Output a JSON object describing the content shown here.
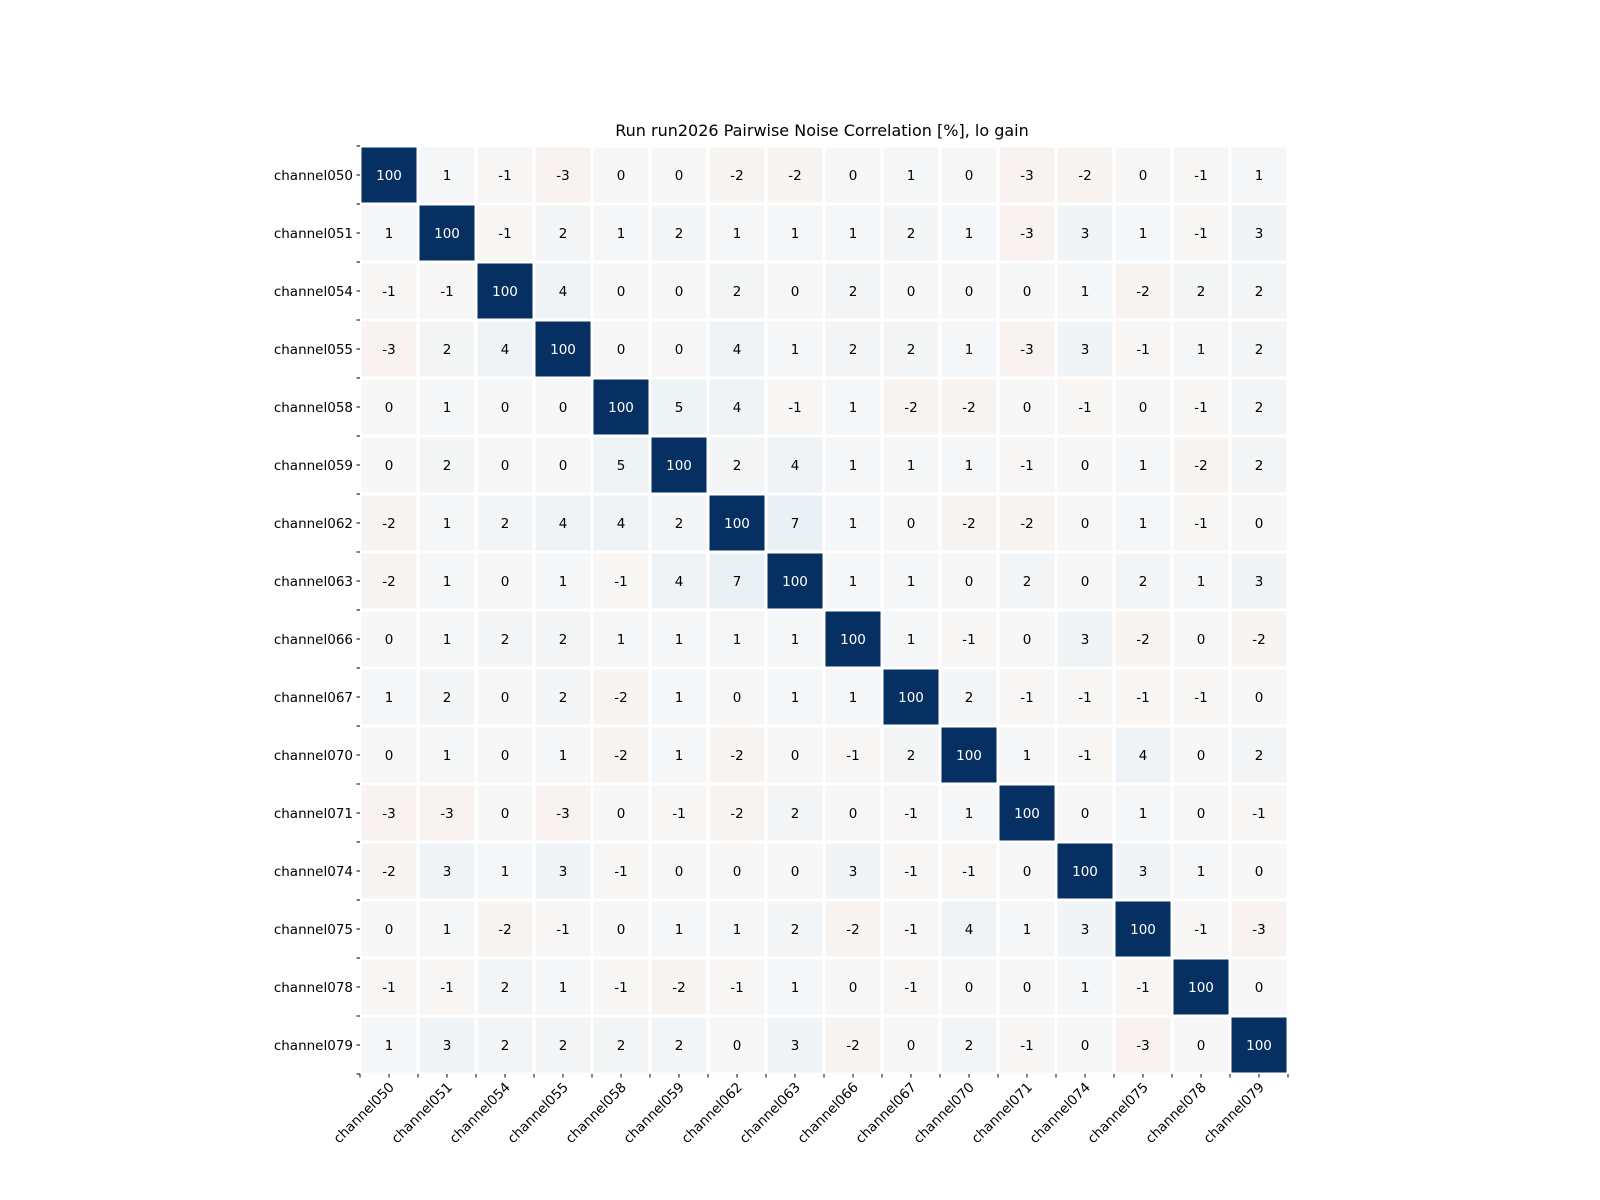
{
  "chart_data": {
    "type": "heatmap",
    "title": "Run run2026 Pairwise Noise Correlation [%], lo gain",
    "xlabel": "",
    "ylabel": "",
    "row_labels": [
      "channel050",
      "channel051",
      "channel054",
      "channel055",
      "channel058",
      "channel059",
      "channel062",
      "channel063",
      "channel066",
      "channel067",
      "channel070",
      "channel071",
      "channel074",
      "channel075",
      "channel078",
      "channel079"
    ],
    "col_labels": [
      "channel050",
      "channel051",
      "channel054",
      "channel055",
      "channel058",
      "channel059",
      "channel062",
      "channel063",
      "channel066",
      "channel067",
      "channel070",
      "channel071",
      "channel074",
      "channel075",
      "channel078",
      "channel079"
    ],
    "values": [
      [
        100,
        1,
        -1,
        -3,
        0,
        0,
        -2,
        -2,
        0,
        1,
        0,
        -3,
        -2,
        0,
        -1,
        1
      ],
      [
        1,
        100,
        -1,
        2,
        1,
        2,
        1,
        1,
        1,
        2,
        1,
        -3,
        3,
        1,
        -1,
        3
      ],
      [
        -1,
        -1,
        100,
        4,
        0,
        0,
        2,
        0,
        2,
        0,
        0,
        0,
        1,
        -2,
        2,
        2
      ],
      [
        -3,
        2,
        4,
        100,
        0,
        0,
        4,
        1,
        2,
        2,
        1,
        -3,
        3,
        -1,
        1,
        2
      ],
      [
        0,
        1,
        0,
        0,
        100,
        5,
        4,
        -1,
        1,
        -2,
        -2,
        0,
        -1,
        0,
        -1,
        2
      ],
      [
        0,
        2,
        0,
        0,
        5,
        100,
        2,
        4,
        1,
        1,
        1,
        -1,
        0,
        1,
        -2,
        2
      ],
      [
        -2,
        1,
        2,
        4,
        4,
        2,
        100,
        7,
        1,
        0,
        -2,
        -2,
        0,
        1,
        -1,
        0
      ],
      [
        -2,
        1,
        0,
        1,
        -1,
        4,
        7,
        100,
        1,
        1,
        0,
        2,
        0,
        2,
        1,
        3
      ],
      [
        0,
        1,
        2,
        2,
        1,
        1,
        1,
        1,
        100,
        1,
        -1,
        0,
        3,
        -2,
        0,
        -2
      ],
      [
        1,
        2,
        0,
        2,
        -2,
        1,
        0,
        1,
        1,
        100,
        2,
        -1,
        -1,
        -1,
        -1,
        0
      ],
      [
        0,
        1,
        0,
        1,
        -2,
        1,
        -2,
        0,
        -1,
        2,
        100,
        1,
        -1,
        4,
        0,
        2
      ],
      [
        -3,
        -3,
        0,
        -3,
        0,
        -1,
        -2,
        2,
        0,
        -1,
        1,
        100,
        0,
        1,
        0,
        -1
      ],
      [
        -2,
        3,
        1,
        3,
        -1,
        0,
        0,
        0,
        3,
        -1,
        -1,
        0,
        100,
        3,
        1,
        0
      ],
      [
        0,
        1,
        -2,
        -1,
        0,
        1,
        1,
        2,
        -2,
        -1,
        4,
        1,
        3,
        100,
        -1,
        -3
      ],
      [
        -1,
        -1,
        2,
        1,
        -1,
        -2,
        -1,
        1,
        0,
        -1,
        0,
        0,
        1,
        -1,
        100,
        0
      ],
      [
        1,
        3,
        2,
        2,
        2,
        2,
        0,
        3,
        -2,
        0,
        2,
        -1,
        0,
        -3,
        0,
        100
      ]
    ],
    "colormap": "RdBu diverging (negative = red, positive = blue)",
    "value_range": [
      -100,
      100
    ],
    "annotations": "integer value printed in each cell",
    "legend": "none",
    "grid": false,
    "colors": {
      "positive_max": "#053061",
      "neutral": "#f7f7f7",
      "negative_max": "#67001f",
      "cell_border": "#ffffff"
    }
  }
}
